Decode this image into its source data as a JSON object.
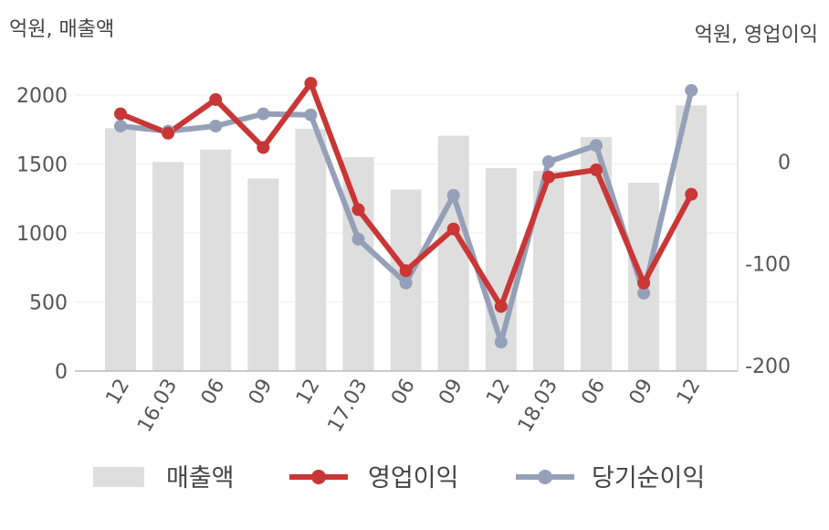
{
  "left_unit": "억원, 매출액",
  "right_unit": "억원, 영업이익",
  "chart_data": {
    "type": "bar+line",
    "categories": [
      "12",
      "16.03",
      "06",
      "09",
      "12",
      "17.03",
      "06",
      "09",
      "12",
      "18.03",
      "06",
      "09",
      "12"
    ],
    "left_axis": {
      "ticks": [
        0,
        500,
        1000,
        1500,
        2000
      ],
      "ylim": [
        0,
        2200
      ]
    },
    "right_axis": {
      "ticks": [
        0,
        -100,
        -200
      ],
      "ylim": [
        -205,
        65
      ]
    },
    "bars": {
      "name": "매출액",
      "axis": "left",
      "color": "#dedede",
      "values": [
        1760,
        1515,
        1605,
        1395,
        1755,
        1550,
        1315,
        1705,
        1470,
        1450,
        1695,
        1365,
        1925
      ]
    },
    "lines": [
      {
        "name": "영업이익",
        "axis": "right",
        "color": "#c93636",
        "values": [
          47,
          28,
          61,
          14,
          77,
          -47,
          -107,
          -66,
          -142,
          -15,
          -8,
          -119,
          -32
        ]
      },
      {
        "name": "당기순이익",
        "axis": "right",
        "color": "#95a0b8",
        "values": [
          35,
          30,
          35,
          47,
          46,
          -76,
          -119,
          -33,
          -177,
          0,
          16,
          -129,
          70
        ]
      }
    ],
    "legend": [
      "매출액",
      "영업이익",
      "당기순이익"
    ],
    "legend_position": "bottom",
    "grid": true
  }
}
